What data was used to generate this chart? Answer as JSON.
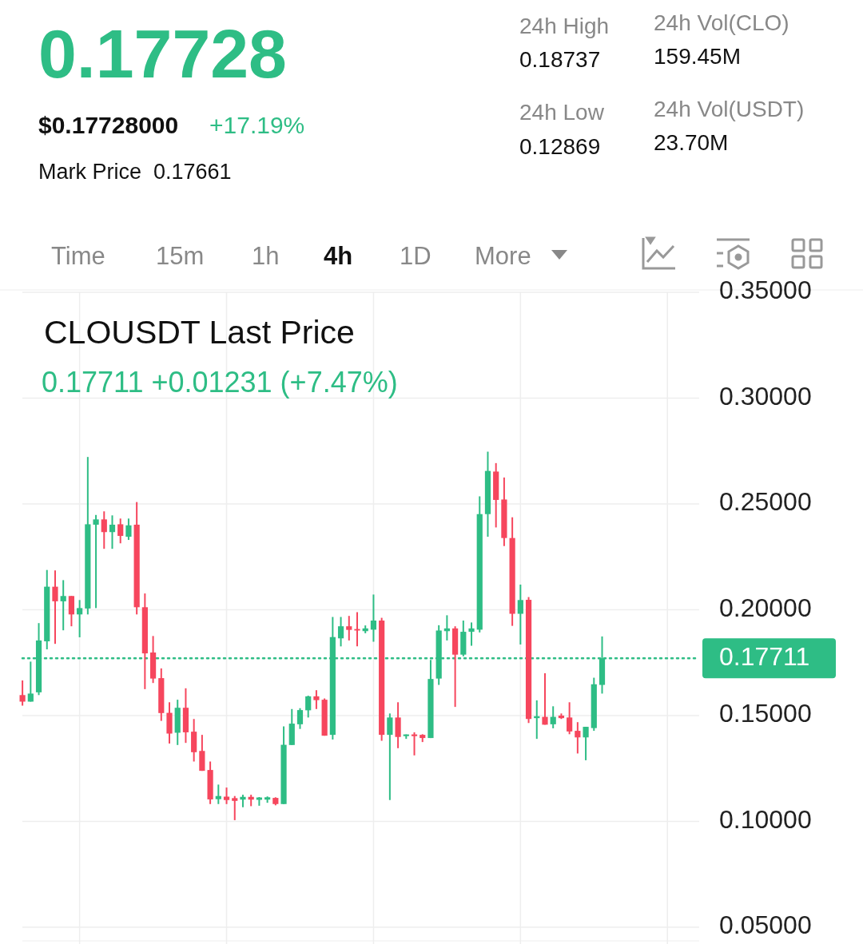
{
  "chart_data": {
    "type": "candlestick",
    "title": "CLOUSDT Last Price",
    "subtitle": "0.17711  +0.01231 (+7.47%)",
    "annotations": [
      "0.17728",
      "$0.17728000",
      "+17.19%",
      "Mark Price",
      "0.17661",
      "24h High",
      "0.18737",
      "24h Low",
      "0.12869",
      "24h Vol(CLO)",
      "159.45M",
      "24h Vol(USDT)",
      "23.70M",
      "Time",
      "15m",
      "1h",
      "4h",
      "1D",
      "More"
    ],
    "categories": [
      null,
      null,
      null,
      null,
      null,
      null,
      null,
      null,
      null,
      null,
      null,
      null,
      null,
      null,
      null,
      null,
      null,
      null,
      null,
      null,
      null,
      null,
      null,
      null,
      null,
      null,
      null,
      null,
      null,
      null,
      null,
      null,
      null,
      null,
      null,
      null,
      null,
      null,
      null,
      null,
      null,
      null,
      null,
      null,
      null,
      null,
      null,
      null,
      null,
      null,
      null,
      null,
      null,
      null,
      null,
      null,
      null,
      null,
      null,
      null,
      null,
      null,
      null,
      null,
      null,
      null,
      null,
      null,
      null,
      null,
      null,
      null
    ],
    "ohlc": [
      [
        0.1597,
        0.1666,
        0.1547,
        0.1566
      ],
      [
        0.1566,
        0.1755,
        0.1566,
        0.1604
      ],
      [
        0.161,
        0.1937,
        0.1597,
        0.1855
      ],
      [
        0.1851,
        0.2188,
        0.1813,
        0.2109
      ],
      [
        0.2109,
        0.2186,
        0.1839,
        0.204
      ],
      [
        0.204,
        0.214,
        0.1903,
        0.2065
      ],
      [
        0.2065,
        0.2065,
        0.1922,
        0.1978
      ],
      [
        0.1978,
        0.2046,
        0.187,
        0.2008
      ],
      [
        0.2006,
        0.2722,
        0.1978,
        0.2404
      ],
      [
        0.2402,
        0.2448,
        0.2008,
        0.2427
      ],
      [
        0.2427,
        0.2465,
        0.2288,
        0.2367
      ],
      [
        0.2367,
        0.2446,
        0.2288,
        0.2402
      ],
      [
        0.2404,
        0.2431,
        0.2314,
        0.2349
      ],
      [
        0.2345,
        0.2431,
        0.233,
        0.2399
      ],
      [
        0.2402,
        0.2509,
        0.1978,
        0.2012
      ],
      [
        0.2012,
        0.2077,
        0.1625,
        0.1794
      ],
      [
        0.1798,
        0.1876,
        0.1654,
        0.1675
      ],
      [
        0.1677,
        0.1723,
        0.1475,
        0.1512
      ],
      [
        0.1513,
        0.1563,
        0.1368,
        0.1415
      ],
      [
        0.1419,
        0.1575,
        0.1361,
        0.1537
      ],
      [
        0.1537,
        0.1629,
        0.1371,
        0.1421
      ],
      [
        0.1424,
        0.1484,
        0.1283,
        0.1327
      ],
      [
        0.1333,
        0.1409,
        0.1239,
        0.1239
      ],
      [
        0.1243,
        0.1283,
        0.1082,
        0.1104
      ],
      [
        0.1105,
        0.1174,
        0.1082,
        0.112
      ],
      [
        0.1117,
        0.116,
        0.1082,
        0.1101
      ],
      [
        0.111,
        0.112,
        0.1006,
        0.1097
      ],
      [
        0.1103,
        0.1126,
        0.1067,
        0.1116
      ],
      [
        0.1116,
        0.1126,
        0.1072,
        0.1103
      ],
      [
        0.1102,
        0.1115,
        0.1074,
        0.1113
      ],
      [
        0.1103,
        0.1118,
        0.1088,
        0.1114
      ],
      [
        0.1111,
        0.1114,
        0.1076,
        0.1082
      ],
      [
        0.1082,
        0.1449,
        0.1082,
        0.1362
      ],
      [
        0.1361,
        0.1531,
        0.1361,
        0.1462
      ],
      [
        0.1459,
        0.1535,
        0.1437,
        0.1526
      ],
      [
        0.1525,
        0.1594,
        0.1491,
        0.1591
      ],
      [
        0.1591,
        0.162,
        0.1531,
        0.1573
      ],
      [
        0.1575,
        0.1581,
        0.1405,
        0.1405
      ],
      [
        0.1409,
        0.1966,
        0.1387,
        0.1871
      ],
      [
        0.1865,
        0.1966,
        0.1827,
        0.1922
      ],
      [
        0.1922,
        0.1971,
        0.1855,
        0.1905
      ],
      [
        0.1909,
        0.1989,
        0.1827,
        0.1902
      ],
      [
        0.1899,
        0.1926,
        0.1889,
        0.1912
      ],
      [
        0.1906,
        0.2072,
        0.1849,
        0.1949
      ],
      [
        0.1949,
        0.1962,
        0.1381,
        0.1409
      ],
      [
        0.1409,
        0.151,
        0.1101,
        0.1491
      ],
      [
        0.1491,
        0.1563,
        0.1346,
        0.1399
      ],
      [
        0.1403,
        0.1411,
        0.139,
        0.1411
      ],
      [
        0.1411,
        0.1421,
        0.1312,
        0.1403
      ],
      [
        0.1409,
        0.1412,
        0.1375,
        0.1394
      ],
      [
        0.1394,
        0.1763,
        0.1394,
        0.1673
      ],
      [
        0.1675,
        0.1927,
        0.1645,
        0.1902
      ],
      [
        0.1899,
        0.1974,
        0.1855,
        0.1912
      ],
      [
        0.1912,
        0.1922,
        0.1541,
        0.1788
      ],
      [
        0.1788,
        0.1949,
        0.178,
        0.1896
      ],
      [
        0.1896,
        0.194,
        0.183,
        0.1912
      ],
      [
        0.1906,
        0.2536,
        0.1893,
        0.2452
      ],
      [
        0.2452,
        0.2747,
        0.2345,
        0.2656
      ],
      [
        0.2653,
        0.2693,
        0.2389,
        0.2519
      ],
      [
        0.2521,
        0.2625,
        0.2301,
        0.2339
      ],
      [
        0.2339,
        0.2437,
        0.1924,
        0.1981
      ],
      [
        0.1981,
        0.2119,
        0.1836,
        0.2046
      ],
      [
        0.2047,
        0.206,
        0.1465,
        0.1484
      ],
      [
        0.1488,
        0.1572,
        0.139,
        0.1497
      ],
      [
        0.1494,
        0.17,
        0.1457,
        0.1457
      ],
      [
        0.1459,
        0.1544,
        0.144,
        0.1494
      ],
      [
        0.15,
        0.151,
        0.1484,
        0.1488
      ],
      [
        0.1491,
        0.1563,
        0.1412,
        0.1425
      ],
      [
        0.1428,
        0.1469,
        0.1321,
        0.1397
      ],
      [
        0.1397,
        0.1447,
        0.1289,
        0.1447
      ],
      [
        0.1441,
        0.1679,
        0.1428,
        0.1648
      ],
      [
        0.1645,
        0.1874,
        0.1604,
        0.1771
      ]
    ],
    "colors": [
      "#f6465d",
      "#2ebd85",
      "#2ebd85",
      "#2ebd85",
      "#f6465d",
      "#2ebd85",
      "#f6465d",
      "#2ebd85",
      "#2ebd85",
      "#2ebd85",
      "#f6465d",
      "#2ebd85",
      "#f6465d",
      "#2ebd85",
      "#f6465d",
      "#f6465d",
      "#f6465d",
      "#f6465d",
      "#f6465d",
      "#2ebd85",
      "#f6465d",
      "#f6465d",
      "#f6465d",
      "#f6465d",
      "#2ebd85",
      "#f6465d",
      "#f6465d",
      "#2ebd85",
      "#f6465d",
      "#2ebd85",
      "#2ebd85",
      "#f6465d",
      "#2ebd85",
      "#2ebd85",
      "#2ebd85",
      "#2ebd85",
      "#f6465d",
      "#f6465d",
      "#2ebd85",
      "#2ebd85",
      "#f6465d",
      "#f6465d",
      "#2ebd85",
      "#2ebd85",
      "#f6465d",
      "#2ebd85",
      "#f6465d",
      "#2ebd85",
      "#f6465d",
      "#f6465d",
      "#2ebd85",
      "#2ebd85",
      "#2ebd85",
      "#f6465d",
      "#2ebd85",
      "#2ebd85",
      "#2ebd85",
      "#2ebd85",
      "#f6465d",
      "#f6465d",
      "#f6465d",
      "#2ebd85",
      "#f6465d",
      "#2ebd85",
      "#f6465d",
      "#2ebd85",
      "#f6465d",
      "#f6465d",
      "#f6465d",
      "#2ebd85",
      "#2ebd85",
      "#2ebd85"
    ],
    "ylim": [
      0.05,
      0.35
    ],
    "yticks": [
      {
        "value": 0.35,
        "label": "0.35000"
      },
      {
        "value": 0.3,
        "label": "0.30000"
      },
      {
        "value": 0.25,
        "label": "0.25000"
      },
      {
        "value": 0.2,
        "label": "0.20000"
      },
      {
        "value": 0.15,
        "label": "0.15000"
      },
      {
        "value": 0.1,
        "label": "0.10000"
      },
      {
        "value": 0.05,
        "label": "0.05000"
      }
    ],
    "ref_lines": [
      {
        "axis": "y",
        "value": 0.17711,
        "label": "0.17711",
        "color": "#2ebd85",
        "line_style": "dotted"
      }
    ],
    "grid": true,
    "tick_labels": "y"
  }
}
